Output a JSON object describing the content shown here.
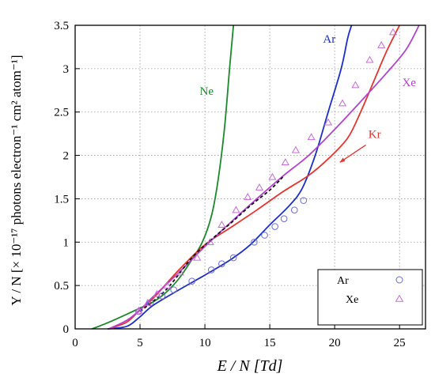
{
  "chart_data": {
    "type": "line",
    "xlabel": "E / N [Td]",
    "ylabel": "Y / N [× 10⁻¹⁷ photons electron⁻¹ cm² atom⁻¹]",
    "xlim": [
      0,
      27
    ],
    "ylim": [
      0,
      3.5
    ],
    "x_ticks": [
      "0",
      "5",
      "10",
      "15",
      "20",
      "25"
    ],
    "y_ticks": [
      "0",
      "0.5",
      "1",
      "1.5",
      "2",
      "2.5",
      "3",
      "3.5"
    ],
    "grid": true,
    "series": [
      {
        "name": "Ne",
        "kind": "curve",
        "color": "#1a8a2a",
        "points": [
          [
            1.3,
            0
          ],
          [
            2.5,
            0.07
          ],
          [
            4,
            0.17
          ],
          [
            5,
            0.24
          ],
          [
            6,
            0.31
          ],
          [
            7,
            0.42
          ],
          [
            8,
            0.58
          ],
          [
            9,
            0.8
          ],
          [
            9.8,
            1.0
          ],
          [
            10.5,
            1.3
          ],
          [
            11,
            1.7
          ],
          [
            11.5,
            2.3
          ],
          [
            11.9,
            3.0
          ],
          [
            12.2,
            3.5
          ]
        ]
      },
      {
        "name": "Ar",
        "kind": "curve",
        "color": "#1c2fc9",
        "points": [
          [
            2.5,
            0
          ],
          [
            4,
            0.03
          ],
          [
            5,
            0.14
          ],
          [
            6,
            0.27
          ],
          [
            8,
            0.45
          ],
          [
            10,
            0.62
          ],
          [
            12,
            0.8
          ],
          [
            13.5,
            0.97
          ],
          [
            15,
            1.2
          ],
          [
            16.5,
            1.42
          ],
          [
            17.5,
            1.62
          ],
          [
            18.5,
            2.0
          ],
          [
            19.5,
            2.5
          ],
          [
            20.5,
            3.0
          ],
          [
            21,
            3.35
          ],
          [
            21.3,
            3.5
          ]
        ]
      },
      {
        "name": "Kr",
        "kind": "curve",
        "color": "#e8322c",
        "points": [
          [
            2.6,
            0
          ],
          [
            4,
            0.08
          ],
          [
            5,
            0.22
          ],
          [
            6,
            0.35
          ],
          [
            8,
            0.68
          ],
          [
            10,
            0.97
          ],
          [
            12,
            1.17
          ],
          [
            14,
            1.37
          ],
          [
            16,
            1.58
          ],
          [
            18,
            1.77
          ],
          [
            19.5,
            1.96
          ],
          [
            21,
            2.2
          ],
          [
            22,
            2.5
          ],
          [
            23,
            2.85
          ],
          [
            24,
            3.2
          ],
          [
            25,
            3.5
          ]
        ]
      },
      {
        "name": "Xe",
        "kind": "curve",
        "color": "#b442d0",
        "points": [
          [
            2.6,
            0
          ],
          [
            4,
            0.1
          ],
          [
            5,
            0.22
          ],
          [
            6,
            0.37
          ],
          [
            8,
            0.65
          ],
          [
            10,
            0.95
          ],
          [
            12,
            1.23
          ],
          [
            14,
            1.5
          ],
          [
            16,
            1.76
          ],
          [
            18,
            2.0
          ],
          [
            20,
            2.3
          ],
          [
            22,
            2.62
          ],
          [
            24,
            2.95
          ],
          [
            25.5,
            3.22
          ],
          [
            26.5,
            3.5
          ]
        ]
      },
      {
        "name": "dashed",
        "kind": "dashed",
        "color": "#111111",
        "points": [
          [
            5,
            0.2
          ],
          [
            7,
            0.45
          ],
          [
            9,
            0.82
          ],
          [
            10.5,
            1.03
          ],
          [
            12,
            1.22
          ],
          [
            13.5,
            1.42
          ],
          [
            15,
            1.6
          ],
          [
            16,
            1.75
          ]
        ]
      },
      {
        "name": "Ar",
        "kind": "circles",
        "color": "#6a6ad8",
        "points": [
          [
            4.9,
            0.2
          ],
          [
            5.8,
            0.3
          ],
          [
            6.7,
            0.38
          ],
          [
            7.6,
            0.45
          ],
          [
            9,
            0.55
          ],
          [
            10.5,
            0.68
          ],
          [
            11.3,
            0.75
          ],
          [
            12.2,
            0.82
          ],
          [
            13.8,
            1.0
          ],
          [
            14.6,
            1.08
          ],
          [
            15.4,
            1.18
          ],
          [
            16.1,
            1.27
          ],
          [
            16.9,
            1.37
          ],
          [
            17.6,
            1.48
          ]
        ]
      },
      {
        "name": "Xe",
        "kind": "triangles",
        "color": "#c86ad8",
        "points": [
          [
            4.9,
            0.21
          ],
          [
            5.6,
            0.3
          ],
          [
            6.3,
            0.4
          ],
          [
            7.1,
            0.5
          ],
          [
            8.1,
            0.65
          ],
          [
            9.4,
            0.82
          ],
          [
            10.4,
            1.0
          ],
          [
            11.3,
            1.2
          ],
          [
            12.4,
            1.37
          ],
          [
            13.3,
            1.52
          ],
          [
            14.2,
            1.63
          ],
          [
            15.2,
            1.75
          ],
          [
            16.2,
            1.92
          ],
          [
            17,
            2.06
          ],
          [
            18.2,
            2.21
          ],
          [
            19.5,
            2.38
          ],
          [
            20.6,
            2.6
          ],
          [
            21.6,
            2.81
          ],
          [
            22.7,
            3.1
          ],
          [
            23.6,
            3.27
          ],
          [
            24.5,
            3.42
          ]
        ]
      }
    ],
    "curve_labels": [
      {
        "text": "Ne",
        "series": 0,
        "x": 9.6,
        "y": 2.7
      },
      {
        "text": "Ar",
        "series": 1,
        "x": 19.1,
        "y": 3.3
      },
      {
        "text": "Kr",
        "series": 2,
        "x": 22.6,
        "y": 2.2
      },
      {
        "text": "Xe",
        "series": 3,
        "x": 25.2,
        "y": 2.8
      }
    ],
    "legend": {
      "placement": "bottom-right",
      "entries": [
        {
          "label": "Ar",
          "marker": "circle",
          "color": "#6a6ad8"
        },
        {
          "label": "Xe",
          "marker": "triangle",
          "color": "#c86ad8"
        }
      ]
    }
  }
}
